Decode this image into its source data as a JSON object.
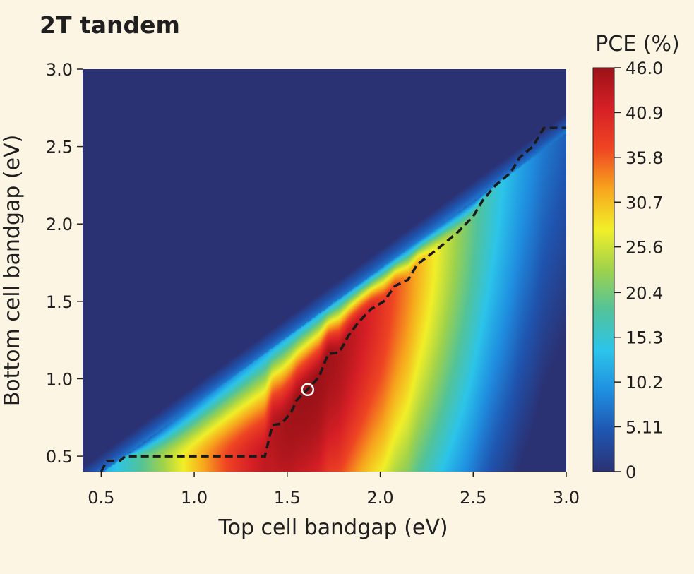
{
  "chart_data": {
    "type": "heatmap",
    "title": "2T tandem",
    "xlabel": "Top cell bandgap (eV)",
    "ylabel": "Bottom cell bandgap (eV)",
    "xlim": [
      0.4,
      3.0
    ],
    "ylim": [
      0.4,
      3.0
    ],
    "x_ticks": [
      "0.5",
      "1.0",
      "1.5",
      "2.0",
      "2.5",
      "3.0"
    ],
    "y_ticks": [
      "0.5",
      "1.0",
      "1.5",
      "2.0",
      "2.5",
      "3.0"
    ],
    "colorbar": {
      "label": "PCE (%)",
      "range": [
        0,
        46.0
      ],
      "ticks": [
        "46.0",
        "40.9",
        "35.8",
        "30.7",
        "25.6",
        "20.4",
        "15.3",
        "10.2",
        "5.11",
        "0"
      ],
      "colors": [
        "#2b3274",
        "#1f55b0",
        "#1f8fe0",
        "#2cc4ea",
        "#52c39a",
        "#9fd24c",
        "#f2ef28",
        "#f7a51d",
        "#ef4523",
        "#d61f26",
        "#9b1218"
      ]
    },
    "optimum_line": {
      "style": "dashed",
      "points": [
        [
          0.5,
          0.4
        ],
        [
          0.53,
          0.47
        ],
        [
          0.6,
          0.47
        ],
        [
          0.63,
          0.5
        ],
        [
          1.38,
          0.5
        ],
        [
          1.42,
          0.7
        ],
        [
          1.47,
          0.71
        ],
        [
          1.52,
          0.78
        ],
        [
          1.55,
          0.86
        ],
        [
          1.6,
          0.92
        ],
        [
          1.67,
          1.01
        ],
        [
          1.72,
          1.16
        ],
        [
          1.78,
          1.17
        ],
        [
          1.83,
          1.28
        ],
        [
          1.88,
          1.36
        ],
        [
          1.95,
          1.45
        ],
        [
          2.02,
          1.5
        ],
        [
          2.08,
          1.6
        ],
        [
          2.15,
          1.64
        ],
        [
          2.2,
          1.74
        ],
        [
          2.3,
          1.83
        ],
        [
          2.42,
          1.95
        ],
        [
          2.5,
          2.05
        ],
        [
          2.55,
          2.15
        ],
        [
          2.62,
          2.25
        ],
        [
          2.7,
          2.33
        ],
        [
          2.75,
          2.43
        ],
        [
          2.82,
          2.5
        ],
        [
          2.88,
          2.62
        ],
        [
          3.0,
          2.62
        ]
      ]
    },
    "maximum_marker": {
      "x": 1.61,
      "y": 0.93,
      "pce": 46.0
    }
  }
}
